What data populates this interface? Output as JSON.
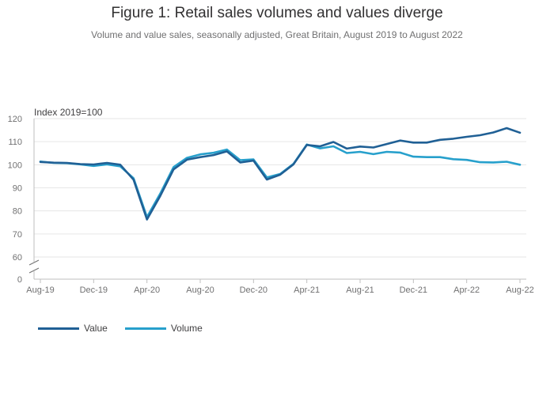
{
  "title": "Figure 1: Retail sales volumes and values diverge",
  "subtitle": "Volume and value sales, seasonally adjusted, Great Britain, August 2019 to August 2022",
  "colors": {
    "value": "#206095",
    "volume": "#27a0cc",
    "grid": "#e6e6e6",
    "axis": "#bfbfbf"
  },
  "chart_data": {
    "type": "line",
    "title": "Figure 1: Retail sales volumes and values diverge",
    "ylabel": "Index 2019=100",
    "xlabel": "",
    "ylim": [
      60,
      120
    ],
    "y_axis_break": {
      "below": 60,
      "base_tick": 0
    },
    "y_ticks": [
      "120",
      "110",
      "100",
      "90",
      "80",
      "70",
      "60",
      "0"
    ],
    "x_tick_labels": [
      "Aug-19",
      "Dec-19",
      "Apr-20",
      "Aug-20",
      "Dec-20",
      "Apr-21",
      "Aug-21",
      "Dec-21",
      "Apr-22",
      "Aug-22"
    ],
    "x": [
      "Aug-19",
      "Sep-19",
      "Oct-19",
      "Nov-19",
      "Dec-19",
      "Jan-20",
      "Feb-20",
      "Mar-20",
      "Apr-20",
      "May-20",
      "Jun-20",
      "Jul-20",
      "Aug-20",
      "Sep-20",
      "Oct-20",
      "Nov-20",
      "Dec-20",
      "Jan-21",
      "Feb-21",
      "Mar-21",
      "Apr-21",
      "May-21",
      "Jun-21",
      "Jul-21",
      "Aug-21",
      "Sep-21",
      "Oct-21",
      "Nov-21",
      "Dec-21",
      "Jan-22",
      "Feb-22",
      "Mar-22",
      "Apr-22",
      "May-22",
      "Jun-22",
      "Jul-22",
      "Aug-22"
    ],
    "series": [
      {
        "name": "Value",
        "values": [
          101.2,
          100.9,
          100.8,
          100.3,
          100.1,
          100.8,
          100.0,
          93.5,
          76.3,
          86.5,
          98.0,
          102.2,
          103.3,
          104.2,
          105.8,
          101.0,
          101.8,
          93.6,
          95.7,
          100.2,
          108.6,
          108.0,
          109.9,
          107.0,
          107.9,
          107.5,
          109.0,
          110.5,
          109.6,
          109.6,
          110.8,
          111.3,
          112.1,
          112.8,
          114.0,
          115.9,
          113.9
        ]
      },
      {
        "name": "Volume",
        "values": [
          101.4,
          100.8,
          100.7,
          100.2,
          99.5,
          100.2,
          99.3,
          94.1,
          77.3,
          87.5,
          99.0,
          103.0,
          104.5,
          105.2,
          106.6,
          102.0,
          102.3,
          94.5,
          96.0,
          100.4,
          108.8,
          107.1,
          108.0,
          105.1,
          105.6,
          104.6,
          105.6,
          105.3,
          103.5,
          103.3,
          103.3,
          102.4,
          102.1,
          101.1,
          101.0,
          101.3,
          100.0
        ]
      }
    ],
    "legend_position": "bottom-left"
  }
}
